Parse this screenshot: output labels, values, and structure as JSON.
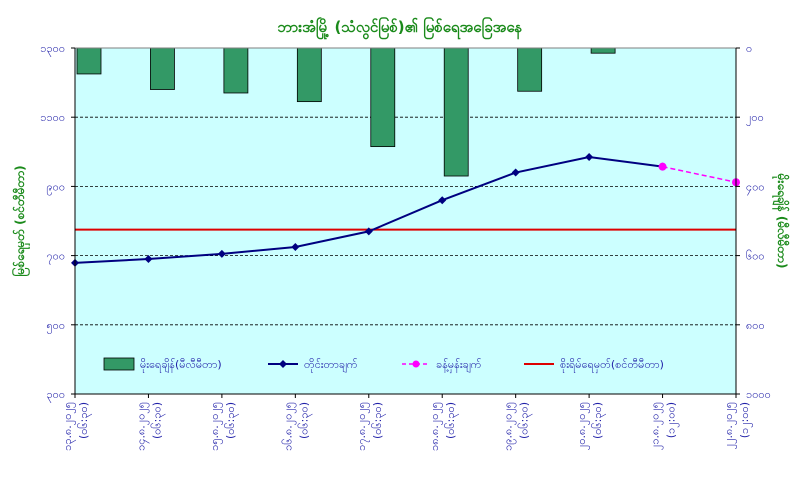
{
  "chart_data": {
    "type": "bar+line",
    "title": "ဘားအံမြို့ (သံလွင်မြစ်)၏ မြစ်ရေအခြေအနေ",
    "ylabel_left": "မြစ်ရေမှတ် (စင်တီမီတာ)",
    "ylabel_right": "မိုးရေချိန် (မီလီမီတာ)",
    "left_axis": {
      "ylim": [
        300,
        1300
      ],
      "ticks": [
        "၃၀၀",
        "၅၀၀",
        "၇၀၀",
        "၉၀၀",
        "၁၁၀၀",
        "၁၃၀၀"
      ],
      "values": [
        300,
        500,
        700,
        900,
        1100,
        1300
      ]
    },
    "right_axis": {
      "ylim": [
        0,
        1000
      ],
      "inverted": true,
      "ticks": [
        "၀",
        "၂၀၀",
        "၄၀၀",
        "၆၀၀",
        "၈၀၀",
        "၁၀၀၀"
      ],
      "values": [
        0,
        200,
        400,
        600,
        800,
        1000
      ]
    },
    "categories": [
      [
        "၁၃.၈.၂၀၂၅",
        "(၀၆:၃၀)"
      ],
      [
        "၁၄.၈.၂၀၂၅",
        "(၀၆:၃၀)"
      ],
      [
        "၁၅.၈.၂၀၂၅",
        "(၀၆:၃၀)"
      ],
      [
        "၁၆.၈.၂၀၂၅",
        "(၀၆:၃၀)"
      ],
      [
        "၁၇.၈.၂၀၂၅",
        "(၀၆:၃၀)"
      ],
      [
        "၁၈.၈.၂၀၂၅",
        "(၀၆:၃၀)"
      ],
      [
        "၁၉.၈.၂၀၂၅",
        "(၀၆:၃၀)"
      ],
      [
        "၂၀.၈.၂၀၂၅",
        "(၀၆:၃၀)"
      ],
      [
        "၂၁.၈.၂၀၂၅",
        "(၁၂:၀၀)"
      ],
      [
        "၂၂.၈.၂၀၂၅",
        "(၁၂:၀၀)"
      ]
    ],
    "series": [
      {
        "name": "မိုးရေချိန်(မီလီမီတာ)",
        "type": "bar",
        "axis": "right",
        "color": "#339966",
        "values": [
          75,
          120,
          130,
          155,
          285,
          370,
          125,
          15,
          null,
          null
        ]
      },
      {
        "name": "တိုင်းတာချက်",
        "type": "line",
        "axis": "left",
        "color": "#000080",
        "values": [
          679,
          690,
          705,
          725,
          770,
          860,
          940,
          985,
          957,
          null
        ]
      },
      {
        "name": "ခန့်မှန်းချက်",
        "type": "line-dashed",
        "axis": "left",
        "color": "#ff00ff",
        "values": [
          null,
          null,
          null,
          null,
          null,
          null,
          null,
          null,
          957,
          912
        ]
      },
      {
        "name": "စိုးရိမ်ရေမှတ်(စင်တီမီတာ)",
        "type": "hline",
        "axis": "left",
        "color": "#dd0000",
        "value": 775
      }
    ],
    "grid": true,
    "legend_position": "bottom-inside",
    "plot_background": "#ccffff"
  }
}
